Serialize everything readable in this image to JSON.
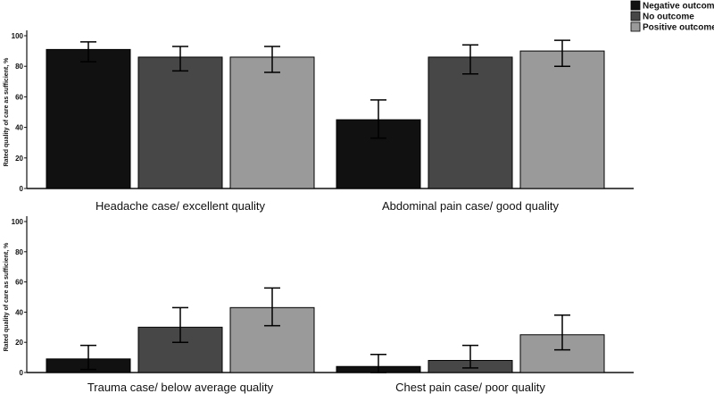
{
  "chart_data": {
    "type": "bar",
    "ylabel": "Rated quality of care as sufficient, %",
    "ylim": [
      0,
      100
    ],
    "yticks": [
      0,
      20,
      40,
      60,
      80,
      100
    ],
    "series": [
      {
        "name": "Negative outcome",
        "color": "#111111"
      },
      {
        "name": "No outcome",
        "color": "#474747"
      },
      {
        "name": "Positive outcome",
        "color": "#9a9a9a"
      }
    ],
    "panels": [
      {
        "label": "Headache case/ excellent quality",
        "values": [
          91,
          86,
          86
        ],
        "errors_low": [
          83,
          77,
          76
        ],
        "errors_high": [
          96,
          93,
          93
        ]
      },
      {
        "label": "Abdominal pain case/ good quality",
        "values": [
          45,
          86,
          90
        ],
        "errors_low": [
          33,
          75,
          80
        ],
        "errors_high": [
          58,
          94,
          97
        ]
      },
      {
        "label": "Trauma case/ below average quality",
        "values": [
          9,
          30,
          43
        ],
        "errors_low": [
          2,
          20,
          31
        ],
        "errors_high": [
          18,
          43,
          56
        ]
      },
      {
        "label": "Chest pain case/ poor quality",
        "values": [
          4,
          8,
          25
        ],
        "errors_low": [
          0,
          3,
          15
        ],
        "errors_high": [
          12,
          18,
          38
        ]
      }
    ]
  }
}
